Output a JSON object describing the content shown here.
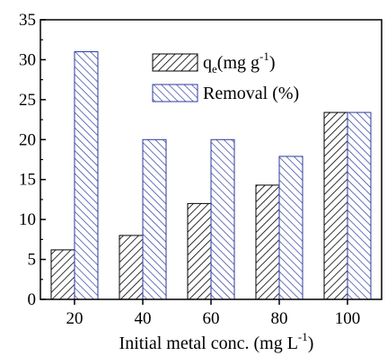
{
  "chart_data": {
    "type": "bar",
    "categories": [
      "20",
      "40",
      "60",
      "80",
      "100"
    ],
    "series": [
      {
        "name": "qe(mg g-1)",
        "name_parts": {
          "base": "q",
          "sub": "e",
          "mid": "(mg g",
          "sup": "-1",
          "tail": ")"
        },
        "values": [
          6.2,
          8.0,
          12.0,
          14.3,
          23.4
        ],
        "color": "#555555",
        "hatch_color": "#000000"
      },
      {
        "name": "Removal (%)",
        "name_parts": {
          "base": "Removal (%)",
          "sub": "",
          "mid": "",
          "sup": "",
          "tail": ""
        },
        "values": [
          31.0,
          20.0,
          20.0,
          17.9,
          23.4
        ],
        "color": "#c8cce6",
        "hatch_color": "#2c3a9e"
      }
    ],
    "xlabel": "Initial metal conc. (mg L-1)",
    "xlabel_parts": {
      "base": "Initial metal conc. (mg L",
      "sup": "-1",
      "tail": ")"
    },
    "ylabel": "",
    "ylim": [
      0,
      35
    ],
    "yticks": [
      "0",
      "5",
      "10",
      "15",
      "20",
      "25",
      "30",
      "35"
    ],
    "grid": false,
    "legend_position": "top-center"
  }
}
